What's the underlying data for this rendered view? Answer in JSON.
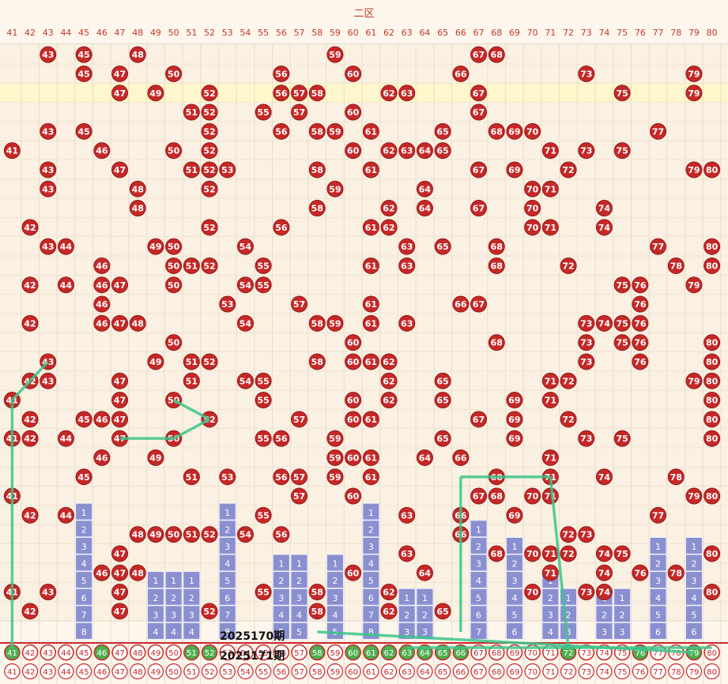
{
  "header": {
    "zone_title": "二区"
  },
  "columns": [
    41,
    42,
    43,
    44,
    45,
    46,
    47,
    48,
    49,
    50,
    51,
    52,
    53,
    54,
    55,
    56,
    57,
    58,
    59,
    60,
    61,
    62,
    63,
    64,
    65,
    66,
    67,
    68,
    69,
    70,
    71,
    72,
    73,
    74,
    75,
    76,
    77,
    78,
    79,
    80
  ],
  "period_labels": [
    "2025170期",
    "2025171期"
  ],
  "chart_data": {
    "type": "table",
    "title": "二区",
    "series": [
      {
        "name": "last_period_hits",
        "values": [
          41,
          46,
          51,
          52,
          58,
          60,
          61,
          62,
          63,
          64,
          65,
          66,
          72,
          76,
          79
        ]
      },
      {
        "name": "row_1_hits",
        "values": [
          43,
          45,
          48,
          59,
          67,
          68
        ]
      },
      {
        "name": "row_2_hits",
        "values": [
          45,
          47,
          50,
          56,
          60,
          66,
          73,
          79
        ]
      },
      {
        "name": "row_3_hits",
        "values": [
          47,
          49,
          52,
          56,
          57,
          58,
          62,
          63,
          67,
          75,
          79
        ]
      },
      {
        "name": "row_4_hits",
        "values": [
          51,
          52,
          55,
          57,
          60,
          67
        ]
      },
      {
        "name": "row_5_hits",
        "values": [
          43,
          45,
          52,
          56,
          58,
          59,
          61,
          65,
          68,
          69,
          70,
          77
        ]
      },
      {
        "name": "row_6_hits",
        "values": [
          41,
          46,
          50,
          52,
          60,
          62,
          63,
          64,
          65,
          71,
          73,
          75
        ]
      },
      {
        "name": "row_7_hits",
        "values": [
          43,
          47,
          51,
          52,
          53,
          58,
          61,
          67,
          69,
          72,
          79,
          80
        ]
      },
      {
        "name": "row_8_hits",
        "values": [
          43,
          48,
          52,
          59,
          64,
          70,
          71
        ]
      },
      {
        "name": "row_9_hits",
        "values": [
          48,
          58,
          62,
          64,
          67,
          70,
          74
        ]
      },
      {
        "name": "row_10_hits",
        "values": [
          42,
          52,
          56,
          61,
          62,
          70,
          71,
          74
        ]
      },
      {
        "name": "row_11_hits",
        "values": [
          43,
          44,
          49,
          50,
          54,
          63,
          65,
          68,
          77,
          80
        ]
      },
      {
        "name": "row_12_hits",
        "values": [
          46,
          50,
          51,
          52,
          55,
          61,
          63,
          68,
          72,
          78,
          80
        ]
      },
      {
        "name": "row_13_hits",
        "values": [
          42,
          44,
          46,
          47,
          50,
          54,
          55,
          75,
          76,
          79
        ]
      },
      {
        "name": "row_14_hits",
        "values": [
          46,
          53,
          57,
          61,
          66,
          67,
          76
        ]
      },
      {
        "name": "row_15_hits",
        "values": [
          42,
          46,
          47,
          48,
          54,
          58,
          59,
          61,
          63,
          73,
          74,
          75,
          76
        ]
      },
      {
        "name": "row_16_hits",
        "values": [
          50,
          60,
          68,
          73,
          75,
          76,
          80
        ]
      },
      {
        "name": "row_17_hits",
        "values": [
          43,
          49,
          51,
          52,
          58,
          60,
          61,
          62,
          73,
          76,
          80
        ]
      },
      {
        "name": "row_18_hits",
        "values": [
          42,
          43,
          47,
          51,
          54,
          55,
          62,
          65,
          71,
          72,
          79,
          80
        ]
      },
      {
        "name": "row_19_hits",
        "values": [
          41,
          47,
          50,
          55,
          60,
          62,
          65,
          69,
          71,
          80
        ]
      },
      {
        "name": "row_20_hits",
        "values": [
          42,
          45,
          46,
          47,
          52,
          57,
          60,
          61,
          67,
          69,
          72,
          80
        ]
      },
      {
        "name": "row_21_hits",
        "values": [
          41,
          42,
          44,
          47,
          50,
          55,
          56,
          59,
          65,
          69,
          73,
          75,
          80
        ]
      },
      {
        "name": "row_22_hits",
        "values": [
          46,
          49,
          59,
          60,
          61,
          64,
          66,
          71
        ]
      },
      {
        "name": "row_23_hits",
        "values": [
          45,
          51,
          53,
          56,
          57,
          59,
          61,
          68,
          71,
          74,
          78
        ]
      },
      {
        "name": "row_24_hits",
        "values": [
          41,
          57,
          60,
          67,
          68,
          70,
          71,
          79,
          80
        ]
      },
      {
        "name": "row_25_hits",
        "values": [
          42,
          44,
          55,
          63,
          66,
          69,
          77
        ]
      },
      {
        "name": "row_26_hits",
        "values": [
          48,
          49,
          50,
          51,
          52,
          54,
          56,
          66,
          72,
          73
        ]
      },
      {
        "name": "row_27_hits",
        "values": [
          47,
          63,
          68,
          70,
          71,
          72,
          74,
          75,
          80
        ]
      },
      {
        "name": "row_28_hits",
        "values": [
          46,
          47,
          48,
          60,
          64,
          71,
          74,
          76,
          78
        ]
      },
      {
        "name": "row_29_hits",
        "values": [
          41,
          43,
          47,
          55,
          58,
          62,
          70,
          73,
          74,
          80
        ]
      },
      {
        "name": "row_30_hits",
        "values": [
          42,
          47,
          52,
          58,
          62,
          65
        ]
      }
    ],
    "histogram": {
      "categories": [
        45,
        49,
        50,
        51,
        53,
        56,
        57,
        59,
        61,
        63,
        64,
        67,
        69,
        71,
        72,
        74,
        75,
        77,
        79
      ],
      "values": [
        8,
        4,
        4,
        4,
        8,
        5,
        5,
        5,
        8,
        3,
        3,
        7,
        6,
        4,
        3,
        3,
        3,
        6,
        6
      ]
    },
    "ylabel": "",
    "xlabel": ""
  }
}
